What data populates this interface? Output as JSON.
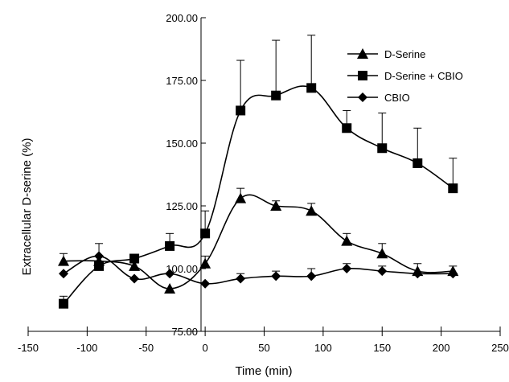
{
  "chart_data": {
    "type": "line",
    "xlabel": "Time (min)",
    "ylabel": "Extracellular D-serine (%)",
    "xlim": [
      -150,
      250
    ],
    "ylim": [
      75,
      200
    ],
    "x_ticks": [
      -150,
      -100,
      -50,
      0,
      50,
      100,
      150,
      200,
      250
    ],
    "y_ticks": [
      75,
      100,
      125,
      150,
      175,
      200
    ],
    "x_tick_labels": [
      "-150",
      "-100",
      "-50",
      "0",
      "50",
      "100",
      "150",
      "200",
      "250"
    ],
    "y_tick_labels": [
      "75.00",
      "100.00",
      "125.00",
      "150.00",
      "175.00",
      "200.00"
    ],
    "legend_position": "top-right",
    "series": [
      {
        "name": "D-Serine",
        "marker": "triangle",
        "x": [
          -120,
          -90,
          -60,
          -30,
          0,
          30,
          60,
          90,
          120,
          150,
          180,
          210
        ],
        "y": [
          103,
          103,
          101,
          92,
          102,
          128,
          125,
          123,
          111,
          106,
          99,
          99
        ],
        "error": [
          3,
          0,
          0,
          0,
          3,
          4,
          2,
          3,
          3,
          4,
          3,
          2
        ]
      },
      {
        "name": "D-Serine + CBIO",
        "marker": "square",
        "x": [
          -120,
          -90,
          -60,
          -30,
          0,
          30,
          60,
          90,
          120,
          150,
          180,
          210
        ],
        "y": [
          86,
          101,
          104,
          109,
          114,
          163,
          169,
          172,
          156,
          148,
          142,
          132
        ],
        "error": [
          3,
          9,
          0,
          5,
          9,
          20,
          22,
          21,
          7,
          14,
          14,
          12
        ]
      },
      {
        "name": "CBIO",
        "marker": "diamond",
        "x": [
          -120,
          -90,
          -60,
          -30,
          0,
          30,
          60,
          90,
          120,
          150,
          180,
          210
        ],
        "y": [
          98,
          105,
          96,
          98,
          94,
          96,
          97,
          97,
          100,
          99,
          98,
          98
        ],
        "error": [
          0,
          0,
          0,
          0,
          0,
          2,
          2,
          3,
          2,
          2,
          0,
          0
        ]
      }
    ]
  }
}
